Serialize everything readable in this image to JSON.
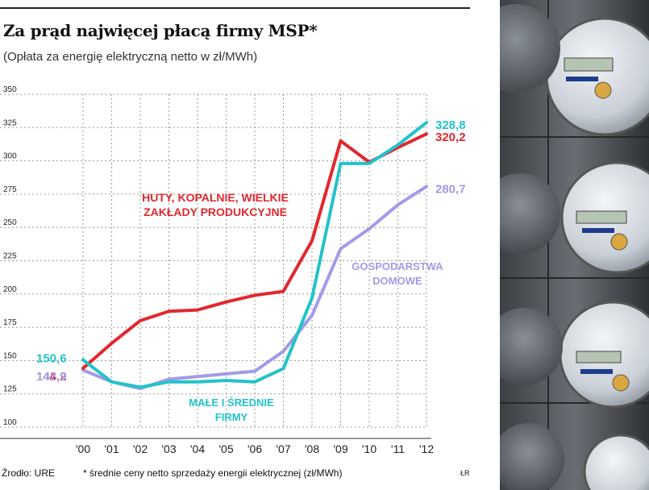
{
  "header": {
    "title": "Za prąd najwięcej płacą firmy MSP*",
    "subtitle": "(Opłata za energię elektryczną netto w zł/MWh)"
  },
  "footer": {
    "source": "Źrodło: URE",
    "footnote": "* średnie ceny netto sprzedaży energii elektrycznej (zł/MWh)",
    "credit": "ŁR"
  },
  "photo": {
    "description_icon": "electric-meters-photo"
  },
  "chart_data": {
    "type": "line",
    "title": "Za prąd najwięcej płacą firmy MSP*",
    "subtitle": "(Opłata za energię elektryczną netto w zł/MWh)",
    "xlabel": "",
    "ylabel": "",
    "categories": [
      "'00",
      "'01",
      "'02",
      "'03",
      "'04",
      "'05",
      "'06",
      "'07",
      "'08",
      "'09",
      "'10",
      "'11",
      "'12"
    ],
    "yticks": [
      100,
      125,
      150,
      175,
      200,
      225,
      250,
      275,
      300,
      325,
      350
    ],
    "ylim": [
      100,
      350
    ],
    "grid": true,
    "series": [
      {
        "name": "HUTY, KOPALNIE, WIELKIE ZAKŁADY PRODUKCYJNE",
        "label_lines": [
          "HUTY, KOPALNIE, WIELKIE",
          "ZAKŁADY PRODUKCYJNE"
        ],
        "color": "#e0282e",
        "values": [
          144.2,
          163,
          180,
          187,
          188,
          194,
          199,
          202,
          240,
          315,
          299,
          310,
          320.2
        ],
        "start_label": "144,2",
        "end_label": "320,2"
      },
      {
        "name": "MAŁE I ŚREDNIE FIRMY",
        "label_lines": [
          "MAŁE I ŚREDNIE",
          "FIRMY"
        ],
        "color": "#22c3c9",
        "values": [
          150.6,
          134,
          130,
          134,
          134,
          135,
          134,
          144,
          197,
          298,
          298,
          312,
          328.8
        ],
        "start_label": "150,6",
        "end_label": "328,8"
      },
      {
        "name": "GOSPODARSTWA DOMOWE",
        "label_lines": [
          "GOSPODARSTWA",
          "DOMOWE"
        ],
        "color": "#a39ae8",
        "values": [
          142.9,
          134,
          129,
          136,
          138,
          140,
          142,
          157,
          184,
          234,
          249,
          267,
          280.7
        ],
        "start_label": "142,9",
        "end_label": "280,7"
      }
    ]
  }
}
